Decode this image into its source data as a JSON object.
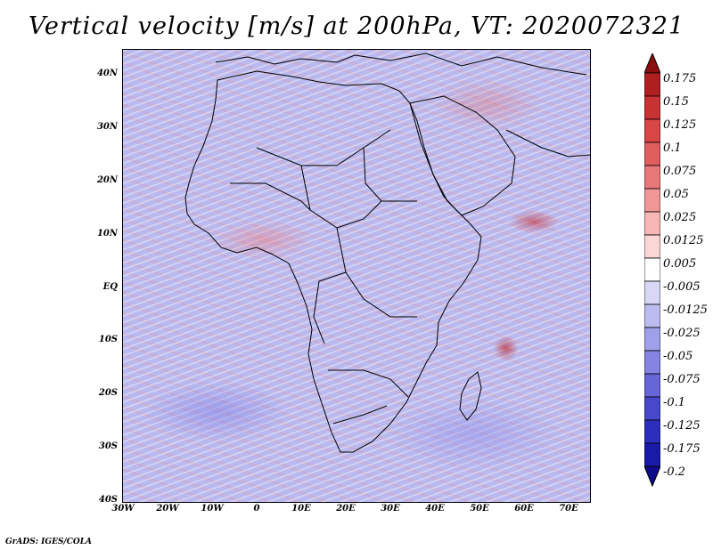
{
  "title": "Vertical velocity [m/s] at 200hPa, VT: 2020072321",
  "footer": "GrADS: IGES/COLA",
  "map": {
    "region": "Africa",
    "lat_range": [
      -40,
      45
    ],
    "lon_range": [
      -30,
      75
    ],
    "lat_labels": [
      "40N",
      "30N",
      "20N",
      "10N",
      "EQ",
      "10S",
      "20S",
      "30S",
      "40S"
    ],
    "lon_labels": [
      "30W",
      "20W",
      "10W",
      "0",
      "10E",
      "20E",
      "30E",
      "40E",
      "50E",
      "60E",
      "70E"
    ]
  },
  "colorbar": {
    "labels": [
      "0.175",
      "0.15",
      "0.125",
      "0.1",
      "0.075",
      "0.05",
      "0.025",
      "0.0125",
      "0.005",
      "-0.005",
      "-0.0125",
      "-0.025",
      "-0.05",
      "-0.075",
      "-0.1",
      "-0.125",
      "-0.175",
      "-0.2"
    ],
    "colors": [
      "#8c0f0f",
      "#b01f1f",
      "#c83232",
      "#d84646",
      "#e05e5e",
      "#e87878",
      "#f09696",
      "#f6b6b6",
      "#fbd6d6",
      "#ffffff",
      "#d8d8f6",
      "#bcbcf0",
      "#a0a0ea",
      "#8484e2",
      "#6666d8",
      "#4848cc",
      "#2e2ebc",
      "#1a1aa8",
      "#100a8c"
    ],
    "top_arrow_color": "#8c0f0f",
    "bottom_arrow_color": "#100a8c"
  }
}
